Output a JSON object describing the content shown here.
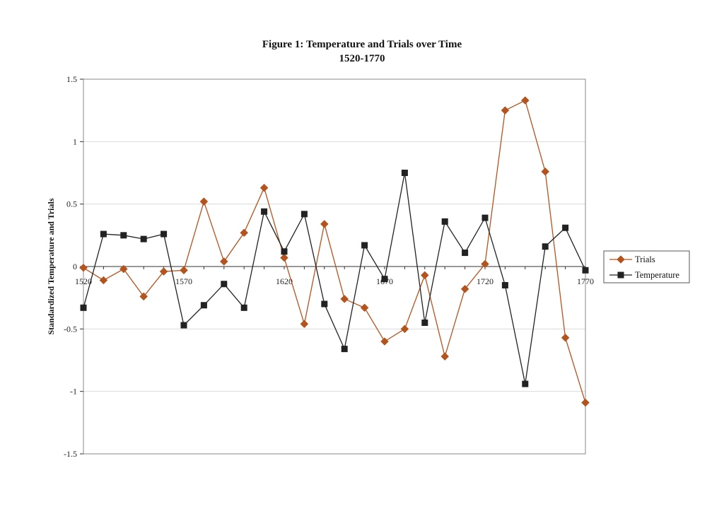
{
  "chart_data": {
    "type": "line",
    "title": "Figure 1: Temperature and Trials over Time",
    "subtitle": "1520-1770",
    "ylabel": "Standardized Temperature and Trials",
    "xlabel": "",
    "x": [
      1520,
      1530,
      1540,
      1550,
      1560,
      1570,
      1580,
      1590,
      1600,
      1610,
      1620,
      1630,
      1640,
      1650,
      1660,
      1670,
      1680,
      1690,
      1700,
      1710,
      1720,
      1730,
      1740,
      1750,
      1760,
      1770
    ],
    "x_tick_labels": [
      "1520",
      "1570",
      "1620",
      "1670",
      "1720",
      "1770"
    ],
    "ylim": [
      -1.5,
      1.5
    ],
    "y_tick_labels": [
      "1.5",
      "1",
      "0.5",
      "0",
      "-0.5",
      "-1",
      "-1.5"
    ],
    "grid": "horizontal",
    "legend_position": "right",
    "series": [
      {
        "name": "Trials",
        "color": "#b3541e",
        "marker": "diamond",
        "values": [
          -0.01,
          -0.11,
          -0.02,
          -0.24,
          -0.04,
          -0.03,
          0.52,
          0.04,
          0.27,
          0.63,
          0.07,
          -0.46,
          0.34,
          -0.26,
          -0.33,
          -0.6,
          -0.5,
          -0.07,
          -0.72,
          -0.18,
          0.02,
          1.25,
          1.33,
          0.76,
          -0.57,
          -1.09
        ]
      },
      {
        "name": "Temperature",
        "color": "#222222",
        "marker": "square",
        "values": [
          -0.33,
          0.26,
          0.25,
          0.22,
          0.26,
          -0.47,
          -0.31,
          -0.14,
          -0.33,
          0.44,
          0.12,
          0.42,
          -0.3,
          -0.66,
          0.17,
          -0.1,
          0.75,
          -0.45,
          0.36,
          0.11,
          0.39,
          -0.15,
          -0.94,
          0.16,
          0.31,
          -0.03
        ]
      }
    ]
  }
}
